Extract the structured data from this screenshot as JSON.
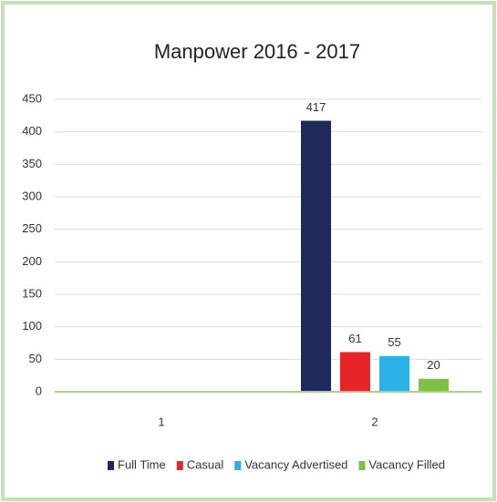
{
  "chart_data": {
    "type": "bar",
    "title": "Manpower 2016 - 2017",
    "categories": [
      "1",
      "2"
    ],
    "series": [
      {
        "name": "Full Time",
        "color": "#1f2a5c",
        "values": [
          null,
          417
        ]
      },
      {
        "name": "Casual",
        "color": "#e8242b",
        "values": [
          null,
          61
        ]
      },
      {
        "name": "Vacancy Advertised",
        "color": "#2cb1e6",
        "values": [
          null,
          55
        ]
      },
      {
        "name": "Vacancy Filled",
        "color": "#7dc243",
        "values": [
          null,
          20
        ]
      }
    ],
    "ylim": [
      0,
      450
    ],
    "yticks": [
      0,
      50,
      100,
      150,
      200,
      250,
      300,
      350,
      400,
      450
    ],
    "grid": true,
    "legend": "bottom",
    "data_labels": true
  }
}
